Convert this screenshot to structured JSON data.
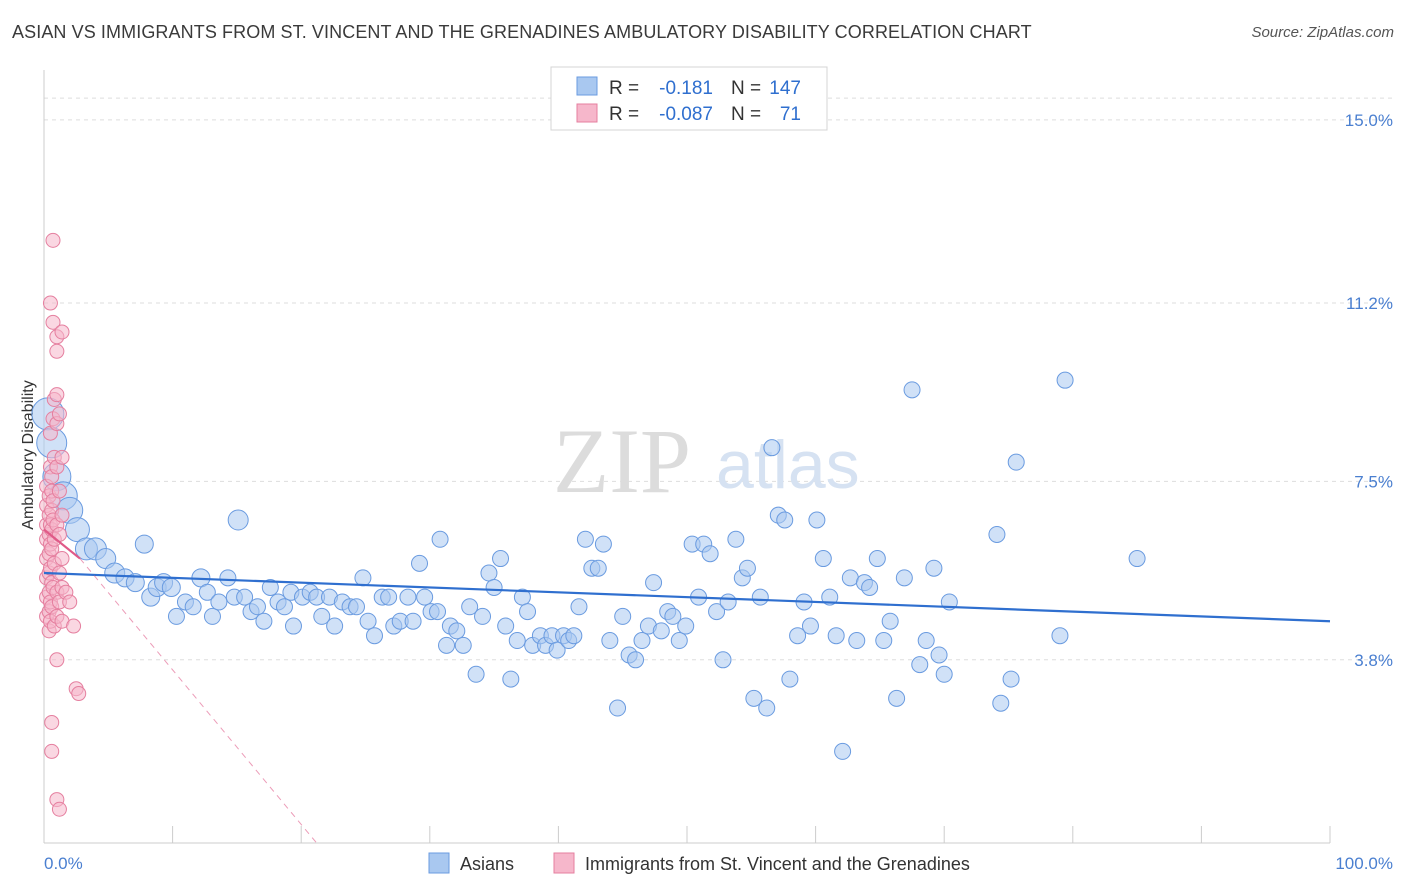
{
  "title": "ASIAN VS IMMIGRANTS FROM ST. VINCENT AND THE GRENADINES AMBULATORY DISABILITY CORRELATION CHART",
  "source": "Source: ZipAtlas.com",
  "watermark": {
    "zip": "ZIP",
    "atlas": "atlas"
  },
  "legend": {
    "rows": [
      {
        "r_label": "R =",
        "r_value": "-0.181",
        "n_label": "N =",
        "n_value": "147"
      },
      {
        "r_label": "R =",
        "r_value": "-0.087",
        "n_label": "N =",
        "n_value": "71"
      }
    ]
  },
  "bottom_legend": [
    "Asians",
    "Immigrants from St. Vincent and the Grenadines"
  ],
  "colors": {
    "asian_fill": "#a9c8f0",
    "asian_stroke": "#6a9be0",
    "asian_line": "#2f6fcf",
    "svg_fill": "#f6b7cb",
    "svg_stroke": "#e57f9f",
    "svg_line": "#e05a88",
    "axis_label": "#4a7fd0",
    "grid": "#dddddd"
  },
  "chart_data": {
    "type": "scatter",
    "title": "ASIAN VS IMMIGRANTS FROM ST. VINCENT AND THE GRENADINES AMBULATORY DISABILITY CORRELATION CHART",
    "xlabel": "",
    "ylabel": "Ambulatory Disability",
    "xlim": [
      0,
      100
    ],
    "ylim": [
      0,
      16.2
    ],
    "x_tick_labels": [
      "0.0%",
      "100.0%"
    ],
    "y_ticks": [
      3.8,
      7.5,
      11.2,
      15.0
    ],
    "y_tick_labels": [
      "3.8%",
      "7.5%",
      "11.2%",
      "15.0%"
    ],
    "grid": true,
    "legend_placement": "top-center",
    "series": [
      {
        "name": "Asians",
        "R": -0.181,
        "N": 147,
        "trend": {
          "x0": 0,
          "y0": 5.6,
          "x1": 100,
          "y1": 4.6
        },
        "points": [
          [
            0.3,
            8.9,
            16
          ],
          [
            0.6,
            8.3,
            15
          ],
          [
            1.0,
            7.6,
            14
          ],
          [
            1.5,
            7.2,
            14
          ],
          [
            2.0,
            6.9,
            13
          ],
          [
            2.6,
            6.5,
            12
          ],
          [
            3.3,
            6.1,
            11
          ],
          [
            4.0,
            6.1,
            11
          ],
          [
            4.8,
            5.9,
            10
          ],
          [
            5.5,
            5.6,
            10
          ],
          [
            6.3,
            5.5,
            9
          ],
          [
            7.1,
            5.4,
            9
          ],
          [
            7.8,
            6.2,
            9
          ],
          [
            8.3,
            5.1,
            9
          ],
          [
            8.8,
            5.3,
            9
          ],
          [
            9.3,
            5.4,
            9
          ],
          [
            9.9,
            5.3,
            9
          ],
          [
            10.3,
            4.7,
            8
          ],
          [
            11.0,
            5.0,
            8
          ],
          [
            11.6,
            4.9,
            8
          ],
          [
            12.2,
            5.5,
            9
          ],
          [
            12.7,
            5.2,
            8
          ],
          [
            13.1,
            4.7,
            8
          ],
          [
            13.6,
            5.0,
            8
          ],
          [
            14.3,
            5.5,
            8
          ],
          [
            14.8,
            5.1,
            8
          ],
          [
            15.1,
            6.7,
            10
          ],
          [
            15.6,
            5.1,
            8
          ],
          [
            16.1,
            4.8,
            8
          ],
          [
            16.6,
            4.9,
            8
          ],
          [
            17.1,
            4.6,
            8
          ],
          [
            17.6,
            5.3,
            8
          ],
          [
            18.2,
            5.0,
            8
          ],
          [
            18.7,
            4.9,
            8
          ],
          [
            19.2,
            5.2,
            8
          ],
          [
            19.4,
            4.5,
            8
          ],
          [
            20.1,
            5.1,
            8
          ],
          [
            20.7,
            5.2,
            8
          ],
          [
            21.2,
            5.1,
            8
          ],
          [
            21.6,
            4.7,
            8
          ],
          [
            22.2,
            5.1,
            8
          ],
          [
            22.6,
            4.5,
            8
          ],
          [
            23.2,
            5.0,
            8
          ],
          [
            23.8,
            4.9,
            8
          ],
          [
            24.3,
            4.9,
            8
          ],
          [
            24.8,
            5.5,
            8
          ],
          [
            25.2,
            4.6,
            8
          ],
          [
            25.7,
            4.3,
            8
          ],
          [
            26.3,
            5.1,
            8
          ],
          [
            26.8,
            5.1,
            8
          ],
          [
            27.2,
            4.5,
            8
          ],
          [
            27.7,
            4.6,
            8
          ],
          [
            28.3,
            5.1,
            8
          ],
          [
            28.7,
            4.6,
            8
          ],
          [
            29.2,
            5.8,
            8
          ],
          [
            29.6,
            5.1,
            8
          ],
          [
            30.1,
            4.8,
            8
          ],
          [
            30.6,
            4.8,
            8
          ],
          [
            30.8,
            6.3,
            8
          ],
          [
            31.3,
            4.1,
            8
          ],
          [
            31.6,
            4.5,
            8
          ],
          [
            32.1,
            4.4,
            8
          ],
          [
            32.6,
            4.1,
            8
          ],
          [
            33.1,
            4.9,
            8
          ],
          [
            33.6,
            3.5,
            8
          ],
          [
            34.1,
            4.7,
            8
          ],
          [
            34.6,
            5.6,
            8
          ],
          [
            35.0,
            5.3,
            8
          ],
          [
            35.5,
            5.9,
            8
          ],
          [
            35.9,
            4.5,
            8
          ],
          [
            36.3,
            3.4,
            8
          ],
          [
            36.8,
            4.2,
            8
          ],
          [
            37.2,
            5.1,
            8
          ],
          [
            37.6,
            4.8,
            8
          ],
          [
            38.0,
            4.1,
            8
          ],
          [
            38.6,
            4.3,
            8
          ],
          [
            39.0,
            4.1,
            8
          ],
          [
            39.5,
            4.3,
            8
          ],
          [
            39.9,
            4.0,
            8
          ],
          [
            40.4,
            4.3,
            8
          ],
          [
            40.8,
            4.2,
            8
          ],
          [
            41.2,
            4.3,
            8
          ],
          [
            41.6,
            4.9,
            8
          ],
          [
            42.1,
            6.3,
            8
          ],
          [
            42.6,
            5.7,
            8
          ],
          [
            43.1,
            5.7,
            8
          ],
          [
            43.5,
            6.2,
            8
          ],
          [
            44.0,
            4.2,
            8
          ],
          [
            44.6,
            2.8,
            8
          ],
          [
            45.0,
            4.7,
            8
          ],
          [
            45.5,
            3.9,
            8
          ],
          [
            46.0,
            3.8,
            8
          ],
          [
            46.5,
            4.2,
            8
          ],
          [
            47.0,
            4.5,
            8
          ],
          [
            47.4,
            5.4,
            8
          ],
          [
            48.0,
            4.4,
            8
          ],
          [
            48.5,
            4.8,
            8
          ],
          [
            48.9,
            4.7,
            8
          ],
          [
            49.4,
            4.2,
            8
          ],
          [
            49.9,
            4.5,
            8
          ],
          [
            50.4,
            6.2,
            8
          ],
          [
            50.9,
            5.1,
            8
          ],
          [
            51.3,
            6.2,
            8
          ],
          [
            51.8,
            6.0,
            8
          ],
          [
            52.3,
            4.8,
            8
          ],
          [
            52.8,
            3.8,
            8
          ],
          [
            53.2,
            5.0,
            8
          ],
          [
            53.8,
            6.3,
            8
          ],
          [
            54.3,
            5.5,
            8
          ],
          [
            54.7,
            5.7,
            8
          ],
          [
            55.2,
            3.0,
            8
          ],
          [
            55.7,
            5.1,
            8
          ],
          [
            56.2,
            2.8,
            8
          ],
          [
            56.6,
            8.2,
            8
          ],
          [
            57.1,
            6.8,
            8
          ],
          [
            57.6,
            6.7,
            8
          ],
          [
            58.0,
            3.4,
            8
          ],
          [
            58.6,
            4.3,
            8
          ],
          [
            59.1,
            5.0,
            8
          ],
          [
            59.6,
            4.5,
            8
          ],
          [
            60.1,
            6.7,
            8
          ],
          [
            60.6,
            5.9,
            8
          ],
          [
            61.1,
            5.1,
            8
          ],
          [
            61.6,
            4.3,
            8
          ],
          [
            62.1,
            1.9,
            8
          ],
          [
            62.7,
            5.5,
            8
          ],
          [
            63.2,
            4.2,
            8
          ],
          [
            63.8,
            5.4,
            8
          ],
          [
            64.2,
            5.3,
            8
          ],
          [
            64.8,
            5.9,
            8
          ],
          [
            65.3,
            4.2,
            8
          ],
          [
            65.8,
            4.6,
            8
          ],
          [
            66.3,
            3.0,
            8
          ],
          [
            66.9,
            5.5,
            8
          ],
          [
            67.5,
            9.4,
            8
          ],
          [
            68.1,
            3.7,
            8
          ],
          [
            68.6,
            4.2,
            8
          ],
          [
            69.2,
            5.7,
            8
          ],
          [
            69.6,
            3.9,
            8
          ],
          [
            70.0,
            3.5,
            8
          ],
          [
            70.4,
            5.0,
            8
          ],
          [
            74.1,
            6.4,
            8
          ],
          [
            74.4,
            2.9,
            8
          ],
          [
            75.2,
            3.4,
            8
          ],
          [
            75.6,
            7.9,
            8
          ],
          [
            79.0,
            4.3,
            8
          ],
          [
            79.4,
            9.6,
            8
          ],
          [
            85.0,
            5.9,
            8
          ]
        ]
      },
      {
        "name": "Immigrants from St. Vincent and the Grenadines",
        "R": -0.087,
        "N": 71,
        "trend": {
          "x0": 0,
          "y0": 6.5,
          "x1": 2.8,
          "y1": 5.9
        },
        "trend_ext": {
          "x0": 2.8,
          "y0": 5.9,
          "x1": 21.2,
          "y1": 0
        },
        "points": [
          [
            0.2,
            7.4
          ],
          [
            0.2,
            7.0
          ],
          [
            0.2,
            6.6
          ],
          [
            0.2,
            6.3
          ],
          [
            0.2,
            5.9
          ],
          [
            0.2,
            5.5
          ],
          [
            0.2,
            5.1
          ],
          [
            0.2,
            4.7
          ],
          [
            0.4,
            7.2
          ],
          [
            0.4,
            6.8
          ],
          [
            0.4,
            6.4
          ],
          [
            0.4,
            6.0
          ],
          [
            0.4,
            5.6
          ],
          [
            0.4,
            5.2
          ],
          [
            0.4,
            4.8
          ],
          [
            0.4,
            4.4
          ],
          [
            0.5,
            11.2
          ],
          [
            0.5,
            8.5
          ],
          [
            0.5,
            7.8
          ],
          [
            0.5,
            6.6
          ],
          [
            0.5,
            6.2
          ],
          [
            0.5,
            5.7
          ],
          [
            0.5,
            5.0
          ],
          [
            0.5,
            4.6
          ],
          [
            0.6,
            7.6
          ],
          [
            0.6,
            7.3
          ],
          [
            0.6,
            6.9
          ],
          [
            0.6,
            6.5
          ],
          [
            0.6,
            6.1
          ],
          [
            0.6,
            5.4
          ],
          [
            0.6,
            4.9
          ],
          [
            0.6,
            2.5
          ],
          [
            0.6,
            1.9
          ],
          [
            0.7,
            12.5
          ],
          [
            0.7,
            10.8
          ],
          [
            0.7,
            8.8
          ],
          [
            0.7,
            7.1
          ],
          [
            0.7,
            6.7
          ],
          [
            0.7,
            5.3
          ],
          [
            0.8,
            9.2
          ],
          [
            0.8,
            8.0
          ],
          [
            0.8,
            6.3
          ],
          [
            0.8,
            5.8
          ],
          [
            0.8,
            4.5
          ],
          [
            1.0,
            10.5
          ],
          [
            1.0,
            10.2
          ],
          [
            1.0,
            9.3
          ],
          [
            1.0,
            8.7
          ],
          [
            1.0,
            7.8
          ],
          [
            1.0,
            6.6
          ],
          [
            1.0,
            5.2
          ],
          [
            1.0,
            4.7
          ],
          [
            1.0,
            3.8
          ],
          [
            1.0,
            0.9
          ],
          [
            1.2,
            8.9
          ],
          [
            1.2,
            7.3
          ],
          [
            1.2,
            6.4
          ],
          [
            1.2,
            5.6
          ],
          [
            1.2,
            5.0
          ],
          [
            1.2,
            0.7
          ],
          [
            1.4,
            10.6
          ],
          [
            1.4,
            8.0
          ],
          [
            1.4,
            6.8
          ],
          [
            1.4,
            5.9
          ],
          [
            1.4,
            5.3
          ],
          [
            1.4,
            4.6
          ],
          [
            1.7,
            5.2
          ],
          [
            2.0,
            5.0
          ],
          [
            2.3,
            4.5
          ],
          [
            2.5,
            3.2
          ],
          [
            2.7,
            3.1
          ]
        ]
      }
    ]
  }
}
